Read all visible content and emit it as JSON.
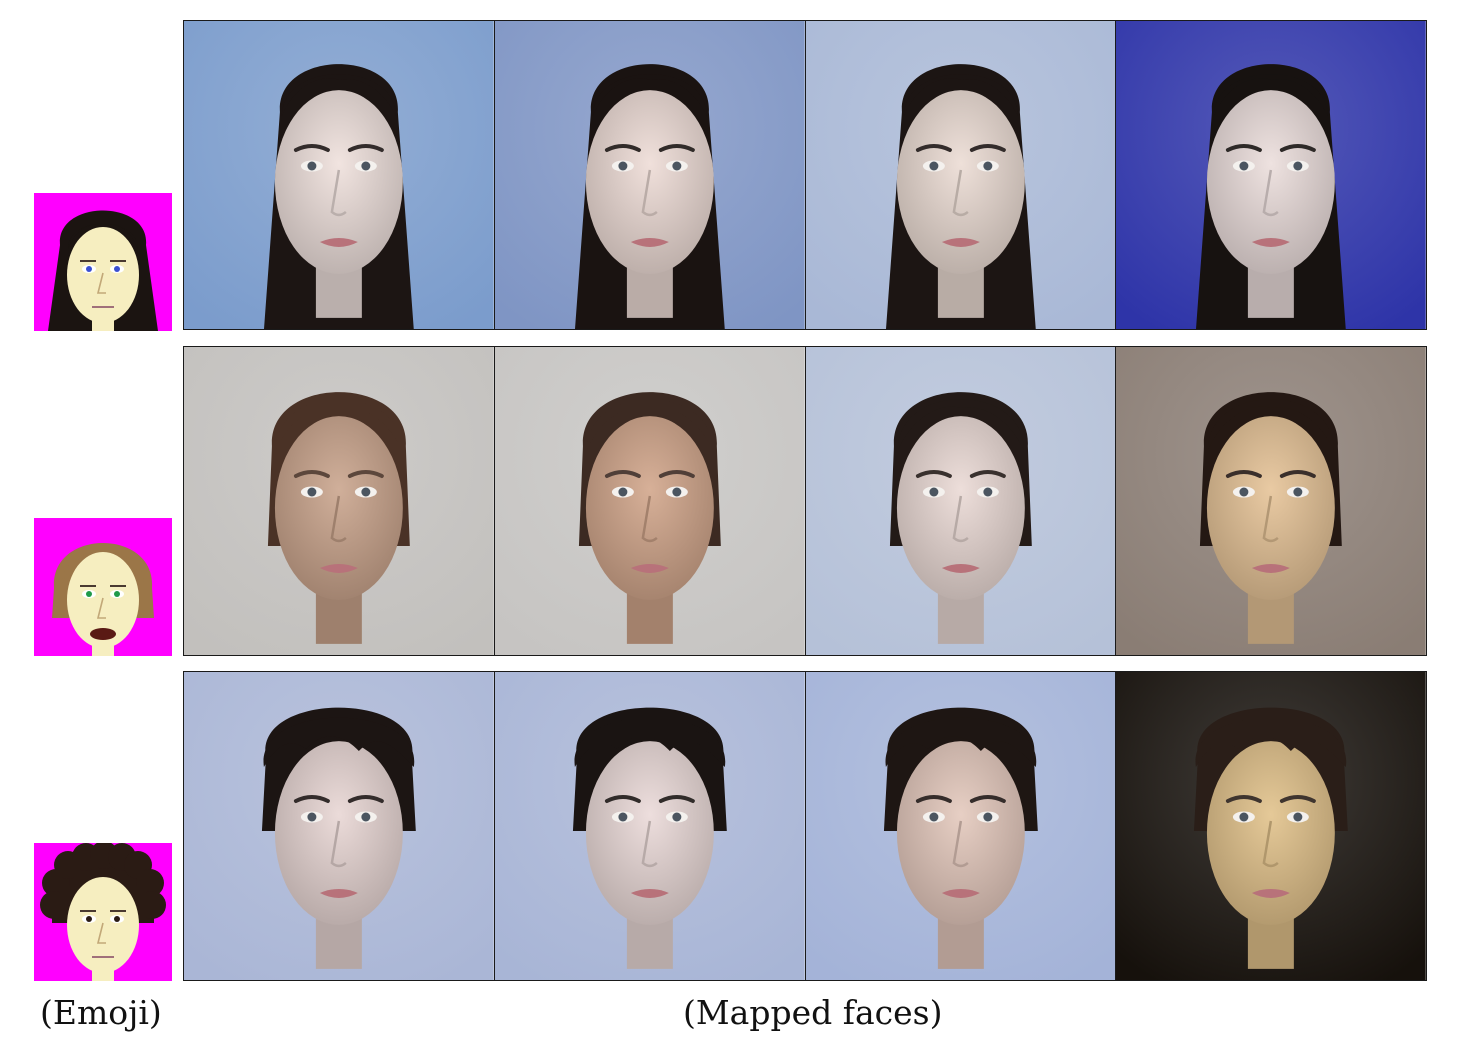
{
  "captions": {
    "left": "(Emoji)",
    "right": "(Mapped faces)"
  },
  "palette": {
    "emoji_bg": "#ff00ff",
    "skin_light": "#efe0dc",
    "skin_tan": "#caa48c",
    "skin_warm": "#e6c396",
    "hair_dark": "#1c1513",
    "hair_brown": "#4a3226",
    "bg_blue": "#7b9ccc",
    "bg_gray": "#c2c0bd",
    "bg_navy": "#2e34a8",
    "bg_black": "#16110c"
  },
  "rows": [
    {
      "emoji": {
        "hair": "#1b1411",
        "skin": "#f6eec0",
        "eye": "#3a4fd0",
        "hair_style": "long"
      },
      "faces": [
        {
          "bg": "#7b9ccc",
          "skin": "#efe0dc",
          "hair": "#1c1513",
          "hair_style": "long"
        },
        {
          "bg": "#7f95c4",
          "skin": "#eedcd6",
          "hair": "#1a1311",
          "hair_style": "long"
        },
        {
          "bg": "#a9b8d6",
          "skin": "#ecdcd4",
          "hair": "#1c1513",
          "hair_style": "long"
        },
        {
          "bg": "#2e34a8",
          "skin": "#ecdedc",
          "hair": "#171210",
          "hair_style": "long"
        }
      ]
    },
    {
      "emoji": {
        "hair": "#9b7648",
        "skin": "#f6eec0",
        "eye": "#1f9a4a",
        "hair_style": "bob"
      },
      "faces": [
        {
          "bg": "#c2c0bd",
          "skin": "#caa48c",
          "hair": "#4a3226",
          "hair_style": "bob"
        },
        {
          "bg": "#c6c4c2",
          "skin": "#d1a58a",
          "hair": "#3c2a22",
          "hair_style": "bob"
        },
        {
          "bg": "#b5c1d8",
          "skin": "#eadad5",
          "hair": "#231a17",
          "hair_style": "bob"
        },
        {
          "bg": "#8a7d74",
          "skin": "#e6c396",
          "hair": "#241813",
          "hair_style": "bob"
        }
      ]
    },
    {
      "emoji": {
        "hair": "#2a1b14",
        "skin": "#f6eec0",
        "eye": "#2a1b14",
        "hair_style": "curly"
      },
      "faces": [
        {
          "bg": "#aab6d6",
          "skin": "#e8d6d4",
          "hair": "#1c1513",
          "hair_style": "short"
        },
        {
          "bg": "#a8b5d6",
          "skin": "#eadad8",
          "hair": "#1a1412",
          "hair_style": "short"
        },
        {
          "bg": "#a4b3d8",
          "skin": "#e4c8bc",
          "hair": "#1e1613",
          "hair_style": "short"
        },
        {
          "bg": "#16110c",
          "skin": "#e2c28a",
          "hair": "#2a1e18",
          "hair_style": "short"
        }
      ]
    }
  ]
}
